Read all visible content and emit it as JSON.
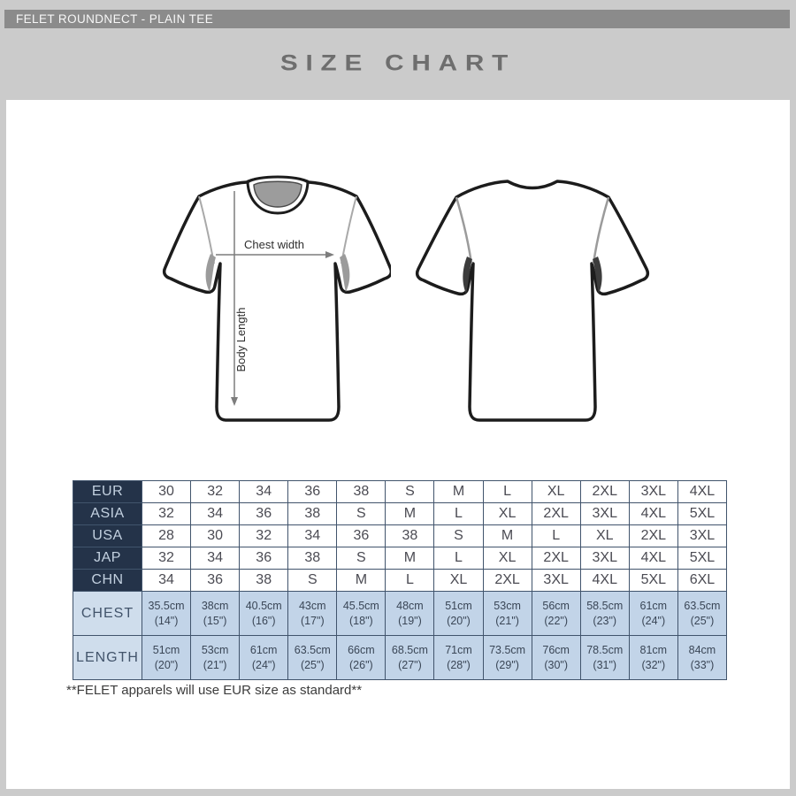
{
  "header": {
    "product_title": "FELET ROUNDNECT - PLAIN TEE",
    "page_title": "SIZE CHART"
  },
  "diagram": {
    "chest_label": "Chest width",
    "length_label": "Body Length",
    "views": [
      "front",
      "back"
    ]
  },
  "size_table": {
    "region_rows": [
      {
        "label": "EUR",
        "cells": [
          "30",
          "32",
          "34",
          "36",
          "38",
          "S",
          "M",
          "L",
          "XL",
          "2XL",
          "3XL",
          "4XL"
        ]
      },
      {
        "label": "ASIA",
        "cells": [
          "32",
          "34",
          "36",
          "38",
          "S",
          "M",
          "L",
          "XL",
          "2XL",
          "3XL",
          "4XL",
          "5XL"
        ]
      },
      {
        "label": "USA",
        "cells": [
          "28",
          "30",
          "32",
          "34",
          "36",
          "38",
          "S",
          "M",
          "L",
          "XL",
          "2XL",
          "3XL"
        ]
      },
      {
        "label": "JAP",
        "cells": [
          "32",
          "34",
          "36",
          "38",
          "S",
          "M",
          "L",
          "XL",
          "2XL",
          "3XL",
          "4XL",
          "5XL"
        ]
      },
      {
        "label": "CHN",
        "cells": [
          "34",
          "36",
          "38",
          "S",
          "M",
          "L",
          "XL",
          "2XL",
          "3XL",
          "4XL",
          "5XL",
          "6XL"
        ]
      }
    ],
    "measure_rows": [
      {
        "label": "CHEST",
        "cells": [
          "35.5cm\n(14\")",
          "38cm\n(15\")",
          "40.5cm\n(16\")",
          "43cm\n(17\")",
          "45.5cm\n(18\")",
          "48cm\n(19\")",
          "51cm\n(20\")",
          "53cm\n(21\")",
          "56cm\n(22\")",
          "58.5cm\n(23\")",
          "61cm\n(24\")",
          "63.5cm\n(25\")"
        ]
      },
      {
        "label": "LENGTH",
        "cells": [
          "51cm\n(20\")",
          "53cm\n(21\")",
          "61cm\n(24\")",
          "63.5cm\n(25\")",
          "66cm\n(26\")",
          "68.5cm\n(27\")",
          "71cm\n(28\")",
          "73.5cm\n(29\")",
          "76cm\n(30\")",
          "78.5cm\n(31\")",
          "81cm\n(32\")",
          "84cm\n(33\")"
        ]
      }
    ]
  },
  "footnote": "**FELET apparels will use EUR size as standard**",
  "colors": {
    "page_bg": "#cbcbcb",
    "bar_bg": "#8b8b8b",
    "bar_text": "#f7f7f7",
    "title_color": "#6e6e6e",
    "panel_bg": "#ffffff",
    "table_border": "#41546c",
    "table_header_bg": "#243349",
    "table_header_text": "#c3d1e0",
    "size_cell_text": "#4b4b53",
    "measure_label_bg": "#cfddec",
    "measure_cell_bg": "#c2d4e8",
    "measure_text": "#3a4656",
    "collar_gray": "#9c9c9c",
    "outline": "#1c1c1c",
    "arrow_gray": "#7d7d7d",
    "footnote_color": "#3c3c3c"
  }
}
